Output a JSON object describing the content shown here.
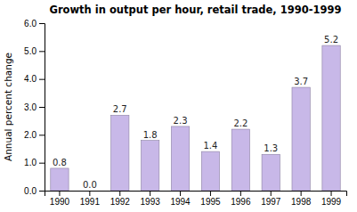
{
  "chart_data": {
    "type": "bar",
    "title": "Growth in output per hour, retail trade, 1990-1999",
    "categories": [
      "1990",
      "1991",
      "1992",
      "1993",
      "1994",
      "1995",
      "1996",
      "1997",
      "1998",
      "1999"
    ],
    "values": [
      0.8,
      0.0,
      2.7,
      1.8,
      2.3,
      1.4,
      2.2,
      1.3,
      3.7,
      5.2
    ],
    "value_labels": [
      "0.8",
      "0.0",
      "2.7",
      "1.8",
      "2.3",
      "1.4",
      "2.2",
      "1.3",
      "3.7",
      "5.2"
    ],
    "data_labels": true,
    "color": "#c8b8e8",
    "ylabel": "Annual percent change",
    "ylim": [
      0.0,
      6.0
    ],
    "yticks": [
      {
        "value": 0.0,
        "label": "0.0"
      },
      {
        "value": 1.0,
        "label": "1.0"
      },
      {
        "value": 2.0,
        "label": "2.0"
      },
      {
        "value": 3.0,
        "label": "3.0"
      },
      {
        "value": 4.0,
        "label": "4.0"
      },
      {
        "value": 5.0,
        "label": "5.0"
      },
      {
        "value": 6.0,
        "label": "6.0"
      }
    ]
  }
}
